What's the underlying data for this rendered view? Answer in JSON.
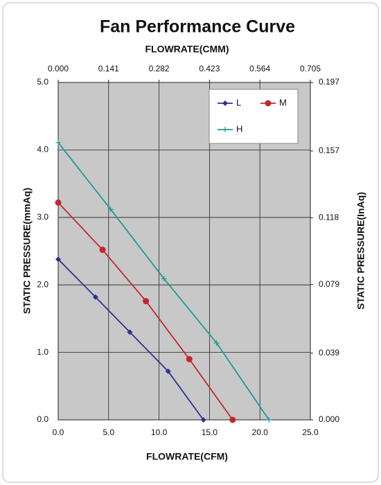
{
  "chart_data": {
    "type": "line",
    "title": "Fan Performance Curve",
    "x_label": "FLOWRATE(CFM)",
    "x2_label": "FLOWRATE(CMM)",
    "y_label": "STATIC PRESSURE(mmAq)",
    "y2_label": "STATIC PRESSURE(InAq)",
    "xlim": [
      0,
      25
    ],
    "xticks": [
      {
        "value": 0,
        "label": "0.0"
      },
      {
        "value": 5,
        "label": "5.0"
      },
      {
        "value": 10,
        "label": "10.0"
      },
      {
        "value": 15,
        "label": "15.0"
      },
      {
        "value": 20,
        "label": "20.0"
      },
      {
        "value": 25,
        "label": "25.0"
      }
    ],
    "x2lim": [
      0,
      0.705
    ],
    "x2ticks": [
      {
        "value": 0,
        "label": "0.000"
      },
      0.141,
      0.282,
      0.423,
      0.564,
      0.705
    ],
    "ylim": [
      0,
      5
    ],
    "yticks": [
      {
        "value": 0,
        "label": "0.0"
      },
      {
        "value": 1,
        "label": "1.0"
      },
      {
        "value": 2,
        "label": "2.0"
      },
      {
        "value": 3,
        "label": "3.0"
      },
      {
        "value": 4,
        "label": "4.0"
      },
      {
        "value": 5,
        "label": "5.0"
      }
    ],
    "y2lim": [
      0,
      0.197
    ],
    "y2ticks": [
      {
        "value": 0,
        "label": "0.000"
      },
      0.039,
      0.079,
      0.118,
      0.157,
      0.197
    ],
    "grid": true,
    "legend": "upper right",
    "background": "#c8c8c8",
    "series": [
      {
        "name": "L",
        "color": "#2e3192",
        "marker": "diamond",
        "x": [
          0,
          3.7,
          7.1,
          10.9,
          14.4
        ],
        "values": [
          2.38,
          1.82,
          1.3,
          0.72,
          0
        ]
      },
      {
        "name": "M",
        "color": "#c1272d",
        "marker": "circle",
        "x": [
          0,
          4.4,
          8.7,
          13.0,
          17.3
        ],
        "values": [
          3.22,
          2.52,
          1.76,
          0.9,
          0
        ]
      },
      {
        "name": "H",
        "color": "#1a9b95",
        "marker": "plus",
        "x": [
          0,
          5.2,
          10.5,
          15.7,
          20.9
        ],
        "values": [
          4.11,
          3.12,
          2.09,
          1.14,
          0
        ]
      }
    ]
  }
}
